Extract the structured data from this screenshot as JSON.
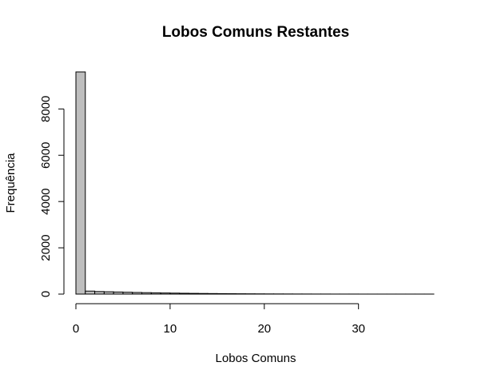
{
  "chart_data": {
    "type": "histogram",
    "title": "Lobos Comuns Restantes",
    "xlabel": "Lobos Comuns",
    "ylabel": "Frequência",
    "xlim": [
      0,
      38
    ],
    "ylim": [
      0,
      9600
    ],
    "x_ticks": [
      0,
      10,
      20,
      30
    ],
    "y_ticks": [
      0,
      2000,
      4000,
      6000,
      8000
    ],
    "bin_width": 1,
    "bar_fill": "#bebebe",
    "bar_stroke": "#000000",
    "bins": [
      {
        "x0": 0,
        "x1": 1,
        "count": 9600
      },
      {
        "x0": 1,
        "x1": 2,
        "count": 130
      },
      {
        "x0": 2,
        "x1": 3,
        "count": 110
      },
      {
        "x0": 3,
        "x1": 4,
        "count": 100
      },
      {
        "x0": 4,
        "x1": 5,
        "count": 90
      },
      {
        "x0": 5,
        "x1": 6,
        "count": 80
      },
      {
        "x0": 6,
        "x1": 7,
        "count": 70
      },
      {
        "x0": 7,
        "x1": 8,
        "count": 62
      },
      {
        "x0": 8,
        "x1": 9,
        "count": 55
      },
      {
        "x0": 9,
        "x1": 10,
        "count": 48
      },
      {
        "x0": 10,
        "x1": 11,
        "count": 42
      },
      {
        "x0": 11,
        "x1": 12,
        "count": 36
      },
      {
        "x0": 12,
        "x1": 13,
        "count": 31
      },
      {
        "x0": 13,
        "x1": 14,
        "count": 27
      },
      {
        "x0": 14,
        "x1": 15,
        "count": 23
      },
      {
        "x0": 15,
        "x1": 16,
        "count": 20
      },
      {
        "x0": 16,
        "x1": 17,
        "count": 17
      },
      {
        "x0": 17,
        "x1": 18,
        "count": 14
      },
      {
        "x0": 18,
        "x1": 19,
        "count": 12
      },
      {
        "x0": 19,
        "x1": 20,
        "count": 10
      },
      {
        "x0": 20,
        "x1": 21,
        "count": 8
      },
      {
        "x0": 21,
        "x1": 22,
        "count": 7
      },
      {
        "x0": 22,
        "x1": 23,
        "count": 6
      },
      {
        "x0": 23,
        "x1": 24,
        "count": 5
      },
      {
        "x0": 24,
        "x1": 25,
        "count": 4
      },
      {
        "x0": 25,
        "x1": 26,
        "count": 3
      },
      {
        "x0": 26,
        "x1": 27,
        "count": 3
      },
      {
        "x0": 27,
        "x1": 28,
        "count": 2
      },
      {
        "x0": 28,
        "x1": 29,
        "count": 2
      },
      {
        "x0": 29,
        "x1": 30,
        "count": 2
      },
      {
        "x0": 30,
        "x1": 31,
        "count": 1
      },
      {
        "x0": 31,
        "x1": 32,
        "count": 1
      },
      {
        "x0": 32,
        "x1": 33,
        "count": 1
      },
      {
        "x0": 33,
        "x1": 34,
        "count": 1
      },
      {
        "x0": 34,
        "x1": 35,
        "count": 1
      },
      {
        "x0": 35,
        "x1": 36,
        "count": 1
      },
      {
        "x0": 36,
        "x1": 37,
        "count": 1
      },
      {
        "x0": 37,
        "x1": 38,
        "count": 1
      }
    ]
  }
}
